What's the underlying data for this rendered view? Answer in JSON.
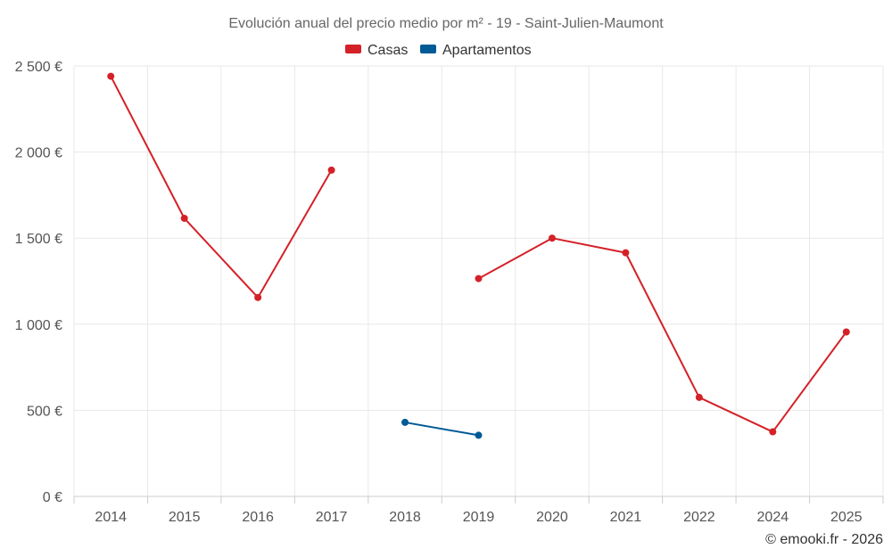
{
  "chart_data": {
    "type": "line",
    "title": "Evolución anual del precio medio por m² - 19 - Saint-Julien-Maumont",
    "categories": [
      "2014",
      "2015",
      "2016",
      "2017",
      "2018",
      "2019",
      "2020",
      "2021",
      "2022",
      "2024",
      "2025"
    ],
    "y_ticks": [
      "0 €",
      "500 €",
      "1 000 €",
      "1 500 €",
      "2 000 €",
      "2 500 €"
    ],
    "ylim": [
      0,
      2500
    ],
    "grid": true,
    "legend_position": "top-center",
    "series": [
      {
        "name": "Casas",
        "color": "#d42127",
        "values": [
          2440,
          1615,
          1155,
          1895,
          null,
          1265,
          1500,
          1415,
          575,
          375,
          955
        ]
      },
      {
        "name": "Apartamentos",
        "color": "#005a96",
        "values": [
          null,
          null,
          null,
          null,
          430,
          355,
          null,
          null,
          null,
          null,
          null
        ]
      }
    ]
  },
  "credit": "© emooki.fr - 2026"
}
